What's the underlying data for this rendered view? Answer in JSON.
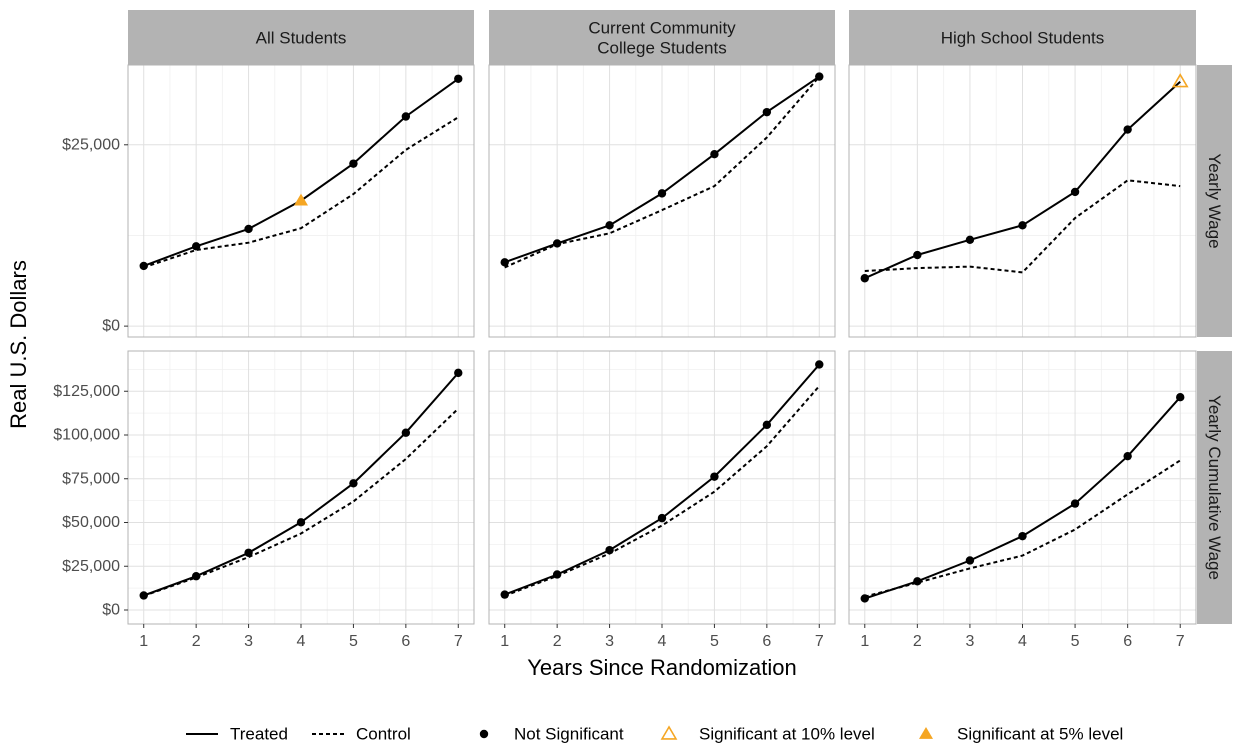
{
  "chart_data": {
    "type": "line",
    "facets": {
      "columns": [
        "All Students",
        "Current Community\nCollege Students",
        "High School Students"
      ],
      "rows": [
        "Yearly Wage",
        "Yearly Cumulative Wage"
      ]
    },
    "xlabel": "Years Since Randomization",
    "ylabel": "Real U.S. Dollars",
    "x": [
      1,
      2,
      3,
      4,
      5,
      6,
      7
    ],
    "x_ticks": [
      "1",
      "2",
      "3",
      "4",
      "5",
      "6",
      "7"
    ],
    "rows_axis": [
      {
        "ylim": [
          -1500,
          36000
        ],
        "ticks": [
          0,
          25000
        ],
        "tick_labels": [
          "$0",
          "$25,000"
        ]
      },
      {
        "ylim": [
          -8000,
          148000
        ],
        "ticks": [
          0,
          25000,
          50000,
          75000,
          100000,
          125000
        ],
        "tick_labels": [
          "$0",
          "$25,000",
          "$50,000",
          "$75,000",
          "$100,000",
          "$125,000"
        ]
      }
    ],
    "panels": [
      {
        "row": 0,
        "col": 0,
        "treated": [
          8300,
          11000,
          13400,
          17300,
          22400,
          28900,
          34100
        ],
        "control": [
          8100,
          10500,
          11500,
          13500,
          18200,
          24300,
          28800
        ],
        "significance": [
          "none",
          "none",
          "none",
          "5%",
          "none",
          "none",
          "none"
        ]
      },
      {
        "row": 0,
        "col": 1,
        "treated": [
          8800,
          11400,
          13900,
          18300,
          23700,
          29500,
          34400
        ],
        "control": [
          8100,
          11300,
          12800,
          16000,
          19300,
          26000,
          34400
        ],
        "significance": [
          "none",
          "none",
          "none",
          "none",
          "none",
          "none",
          "none"
        ]
      },
      {
        "row": 0,
        "col": 2,
        "treated": [
          6600,
          9800,
          11900,
          13900,
          18500,
          27100,
          33700
        ],
        "control": [
          7600,
          8000,
          8200,
          7400,
          14900,
          20100,
          19300
        ],
        "significance": [
          "none",
          "none",
          "none",
          "none",
          "none",
          "none",
          "10%"
        ]
      },
      {
        "row": 1,
        "col": 0,
        "treated": [
          8300,
          19300,
          32700,
          50100,
          72400,
          101300,
          135500
        ],
        "control": [
          8100,
          18600,
          30200,
          43700,
          62000,
          86300,
          115100
        ],
        "significance": [
          "none",
          "none",
          "none",
          "none",
          "none",
          "none",
          "none"
        ]
      },
      {
        "row": 1,
        "col": 1,
        "treated": [
          8800,
          20300,
          34200,
          52500,
          76200,
          105800,
          140300
        ],
        "control": [
          8100,
          19500,
          32300,
          48300,
          67600,
          93600,
          128000
        ],
        "significance": [
          "none",
          "none",
          "none",
          "none",
          "none",
          "none",
          "none"
        ]
      },
      {
        "row": 1,
        "col": 2,
        "treated": [
          6600,
          16400,
          28300,
          42200,
          60800,
          87900,
          121600
        ],
        "control": [
          7600,
          15600,
          23800,
          31100,
          46000,
          66100,
          85500
        ],
        "significance": [
          "none",
          "none",
          "none",
          "none",
          "none",
          "none",
          "none"
        ]
      }
    ],
    "legend": {
      "position": "bottom",
      "line_items": [
        {
          "label": "Treated",
          "style": "solid"
        },
        {
          "label": "Control",
          "style": "dashed"
        }
      ],
      "point_items": [
        {
          "label": "Not Significant",
          "shape": "dot"
        },
        {
          "label": "Significant at 10% level",
          "shape": "open-triangle"
        },
        {
          "label": "Significant at 5% level",
          "shape": "filled-triangle"
        }
      ]
    },
    "colors": {
      "line": "#000000",
      "significant": "#F5A623",
      "strip_fill": "#B3B3B3",
      "panel_border": "#B3B3B3",
      "grid_major": "#E0E0E0",
      "grid_minor": "#F0F0F0",
      "tick_text": "#4D4D4D"
    },
    "grid": true
  }
}
